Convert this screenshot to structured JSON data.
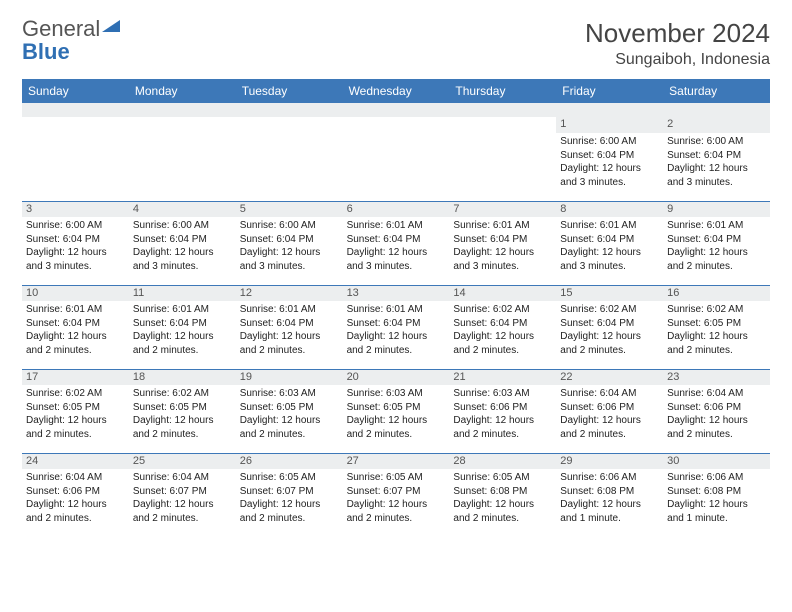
{
  "brand": {
    "word1": "General",
    "word2": "Blue",
    "word2_color": "#2f6fb3",
    "tri_color": "#2f6fb3"
  },
  "header": {
    "title": "November 2024",
    "location": "Sungaiboh, Indonesia"
  },
  "calendar": {
    "header_bg": "#3d78b8",
    "header_text": "#ffffff",
    "daybar_bg": "#eceeef",
    "border_color": "#3d78b8",
    "day_names": [
      "Sunday",
      "Monday",
      "Tuesday",
      "Wednesday",
      "Thursday",
      "Friday",
      "Saturday"
    ],
    "weeks": [
      [
        null,
        null,
        null,
        null,
        null,
        {
          "n": "1",
          "sr": "Sunrise: 6:00 AM",
          "ss": "Sunset: 6:04 PM",
          "dl": "Daylight: 12 hours and 3 minutes."
        },
        {
          "n": "2",
          "sr": "Sunrise: 6:00 AM",
          "ss": "Sunset: 6:04 PM",
          "dl": "Daylight: 12 hours and 3 minutes."
        }
      ],
      [
        {
          "n": "3",
          "sr": "Sunrise: 6:00 AM",
          "ss": "Sunset: 6:04 PM",
          "dl": "Daylight: 12 hours and 3 minutes."
        },
        {
          "n": "4",
          "sr": "Sunrise: 6:00 AM",
          "ss": "Sunset: 6:04 PM",
          "dl": "Daylight: 12 hours and 3 minutes."
        },
        {
          "n": "5",
          "sr": "Sunrise: 6:00 AM",
          "ss": "Sunset: 6:04 PM",
          "dl": "Daylight: 12 hours and 3 minutes."
        },
        {
          "n": "6",
          "sr": "Sunrise: 6:01 AM",
          "ss": "Sunset: 6:04 PM",
          "dl": "Daylight: 12 hours and 3 minutes."
        },
        {
          "n": "7",
          "sr": "Sunrise: 6:01 AM",
          "ss": "Sunset: 6:04 PM",
          "dl": "Daylight: 12 hours and 3 minutes."
        },
        {
          "n": "8",
          "sr": "Sunrise: 6:01 AM",
          "ss": "Sunset: 6:04 PM",
          "dl": "Daylight: 12 hours and 3 minutes."
        },
        {
          "n": "9",
          "sr": "Sunrise: 6:01 AM",
          "ss": "Sunset: 6:04 PM",
          "dl": "Daylight: 12 hours and 2 minutes."
        }
      ],
      [
        {
          "n": "10",
          "sr": "Sunrise: 6:01 AM",
          "ss": "Sunset: 6:04 PM",
          "dl": "Daylight: 12 hours and 2 minutes."
        },
        {
          "n": "11",
          "sr": "Sunrise: 6:01 AM",
          "ss": "Sunset: 6:04 PM",
          "dl": "Daylight: 12 hours and 2 minutes."
        },
        {
          "n": "12",
          "sr": "Sunrise: 6:01 AM",
          "ss": "Sunset: 6:04 PM",
          "dl": "Daylight: 12 hours and 2 minutes."
        },
        {
          "n": "13",
          "sr": "Sunrise: 6:01 AM",
          "ss": "Sunset: 6:04 PM",
          "dl": "Daylight: 12 hours and 2 minutes."
        },
        {
          "n": "14",
          "sr": "Sunrise: 6:02 AM",
          "ss": "Sunset: 6:04 PM",
          "dl": "Daylight: 12 hours and 2 minutes."
        },
        {
          "n": "15",
          "sr": "Sunrise: 6:02 AM",
          "ss": "Sunset: 6:04 PM",
          "dl": "Daylight: 12 hours and 2 minutes."
        },
        {
          "n": "16",
          "sr": "Sunrise: 6:02 AM",
          "ss": "Sunset: 6:05 PM",
          "dl": "Daylight: 12 hours and 2 minutes."
        }
      ],
      [
        {
          "n": "17",
          "sr": "Sunrise: 6:02 AM",
          "ss": "Sunset: 6:05 PM",
          "dl": "Daylight: 12 hours and 2 minutes."
        },
        {
          "n": "18",
          "sr": "Sunrise: 6:02 AM",
          "ss": "Sunset: 6:05 PM",
          "dl": "Daylight: 12 hours and 2 minutes."
        },
        {
          "n": "19",
          "sr": "Sunrise: 6:03 AM",
          "ss": "Sunset: 6:05 PM",
          "dl": "Daylight: 12 hours and 2 minutes."
        },
        {
          "n": "20",
          "sr": "Sunrise: 6:03 AM",
          "ss": "Sunset: 6:05 PM",
          "dl": "Daylight: 12 hours and 2 minutes."
        },
        {
          "n": "21",
          "sr": "Sunrise: 6:03 AM",
          "ss": "Sunset: 6:06 PM",
          "dl": "Daylight: 12 hours and 2 minutes."
        },
        {
          "n": "22",
          "sr": "Sunrise: 6:04 AM",
          "ss": "Sunset: 6:06 PM",
          "dl": "Daylight: 12 hours and 2 minutes."
        },
        {
          "n": "23",
          "sr": "Sunrise: 6:04 AM",
          "ss": "Sunset: 6:06 PM",
          "dl": "Daylight: 12 hours and 2 minutes."
        }
      ],
      [
        {
          "n": "24",
          "sr": "Sunrise: 6:04 AM",
          "ss": "Sunset: 6:06 PM",
          "dl": "Daylight: 12 hours and 2 minutes."
        },
        {
          "n": "25",
          "sr": "Sunrise: 6:04 AM",
          "ss": "Sunset: 6:07 PM",
          "dl": "Daylight: 12 hours and 2 minutes."
        },
        {
          "n": "26",
          "sr": "Sunrise: 6:05 AM",
          "ss": "Sunset: 6:07 PM",
          "dl": "Daylight: 12 hours and 2 minutes."
        },
        {
          "n": "27",
          "sr": "Sunrise: 6:05 AM",
          "ss": "Sunset: 6:07 PM",
          "dl": "Daylight: 12 hours and 2 minutes."
        },
        {
          "n": "28",
          "sr": "Sunrise: 6:05 AM",
          "ss": "Sunset: 6:08 PM",
          "dl": "Daylight: 12 hours and 2 minutes."
        },
        {
          "n": "29",
          "sr": "Sunrise: 6:06 AM",
          "ss": "Sunset: 6:08 PM",
          "dl": "Daylight: 12 hours and 1 minute."
        },
        {
          "n": "30",
          "sr": "Sunrise: 6:06 AM",
          "ss": "Sunset: 6:08 PM",
          "dl": "Daylight: 12 hours and 1 minute."
        }
      ]
    ]
  }
}
